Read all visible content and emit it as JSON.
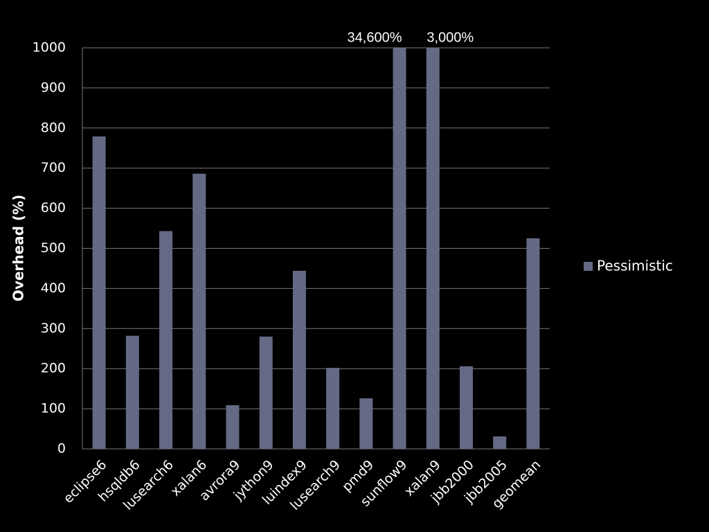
{
  "chart_data": {
    "type": "bar",
    "y_label": "Overhead (%)",
    "categories": [
      "eclipse6",
      "hsqldb6",
      "lusearch6",
      "xalan6",
      "avrora9",
      "jython9",
      "luindex9",
      "lusearch9",
      "pmd9",
      "sunflow9",
      "xalan9",
      "jbb2000",
      "jbb2005",
      "geomean"
    ],
    "series": [
      {
        "name": "Pessimistic",
        "color": "#646a84",
        "values": [
          779,
          282,
          543,
          686,
          109,
          280,
          444,
          202,
          126,
          34600,
          3000,
          206,
          31,
          525
        ],
        "value_labels": [
          null,
          null,
          null,
          null,
          null,
          null,
          null,
          null,
          null,
          "34,600%",
          "3,000%",
          null,
          null,
          null
        ]
      }
    ],
    "ylim": [
      0,
      1000
    ],
    "yticks": [
      0,
      100,
      200,
      300,
      400,
      500,
      600,
      700,
      800,
      900,
      1000
    ],
    "grid": true,
    "legend": "right"
  }
}
